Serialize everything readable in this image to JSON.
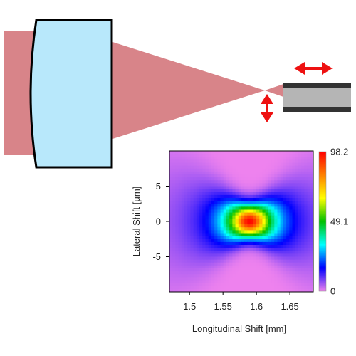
{
  "colors": {
    "beam": "#d88489",
    "lens_fill": "#b8e8fb",
    "lens_stroke": "#000000",
    "fiber_cladding": "#333333",
    "fiber_core": "#b5b5b5",
    "arrow": "#ee1111"
  },
  "icons": {
    "longitudinal_arrow": "double-arrow-horizontal",
    "lateral_arrow": "double-arrow-vertical"
  },
  "chart_data": {
    "type": "heatmap",
    "title": "",
    "xlabel": "Longitudinal Shift [mm]",
    "ylabel": "Lateral Shift [μm]",
    "xlim": [
      1.47,
      1.685
    ],
    "ylim": [
      -10,
      10
    ],
    "x_ticks": [
      "1.5",
      "1.55",
      "1.6",
      "1.65"
    ],
    "x_tick_values": [
      1.5,
      1.55,
      1.6,
      1.65
    ],
    "y_ticks": [
      "5",
      "0",
      "-5"
    ],
    "y_tick_values": [
      5,
      0,
      -5
    ],
    "peak": {
      "x": 1.59,
      "y": 0,
      "value": 98.2
    },
    "colorbar": {
      "labels": [
        "98.2",
        "49.1",
        "0"
      ],
      "values": [
        98.2,
        49.1,
        0
      ],
      "min": 0,
      "max": 98.2,
      "colormap": [
        "#ee82ee",
        "#0000ff",
        "#00ffff",
        "#00c000",
        "#ffff00",
        "#ff8000",
        "#ff0000"
      ]
    },
    "grid": false
  }
}
